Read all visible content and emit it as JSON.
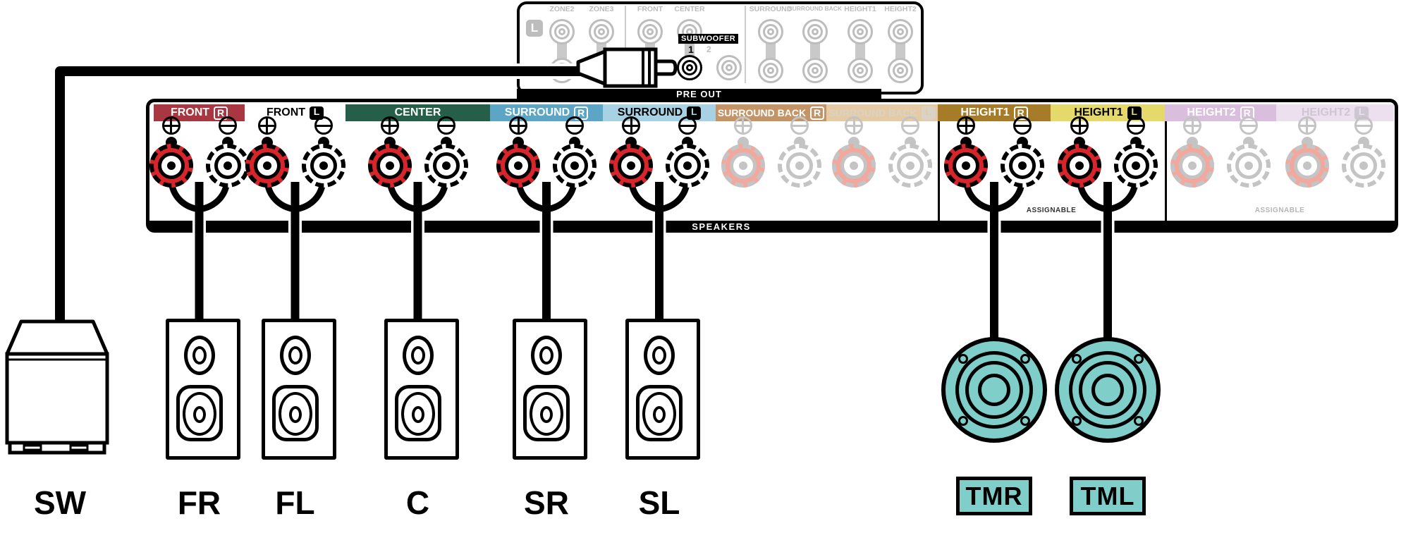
{
  "pre_out_panel": {
    "bar_label": "PRE OUT",
    "channel_label": "L",
    "subwoofer": {
      "label": "SUBWOOFER",
      "jack1_label": "1",
      "jack2_label": "2"
    },
    "columns": [
      {
        "label": "ZONE2"
      },
      {
        "label": "ZONE3"
      },
      {
        "label": "FRONT"
      },
      {
        "label": "CENTER"
      },
      {
        "label": "SURROUND"
      },
      {
        "label": "SURROUND BACK"
      },
      {
        "label": "HEIGHT1"
      },
      {
        "label": "HEIGHT2"
      }
    ],
    "inactive_color": "#bdbdbd",
    "active_color": "#000000"
  },
  "speaker_panel": {
    "bar_label": "SPEAKERS",
    "assignable_labels": [
      {
        "text": "ASSIGNABLE",
        "active": true
      },
      {
        "text": "ASSIGNABLE",
        "active": false
      }
    ],
    "groups": [
      {
        "id": "front-r",
        "label": "FRONT",
        "badge": "R",
        "badge_style": "outline",
        "bg": "#A93741",
        "fg": "#ffffff",
        "active": true,
        "wired": true
      },
      {
        "id": "front-l",
        "label": "FRONT",
        "badge": "L",
        "badge_style": "solid",
        "bg": "#ffffff",
        "fg": "#000000",
        "active": true,
        "wired": true
      },
      {
        "id": "center",
        "label": "CENTER",
        "badge": "",
        "badge_style": "none",
        "bg": "#265F49",
        "fg": "#ffffff",
        "active": true,
        "wired": true
      },
      {
        "id": "surround-r",
        "label": "SURROUND",
        "badge": "R",
        "badge_style": "outline",
        "bg": "#5CA5C4",
        "fg": "#ffffff",
        "active": true,
        "wired": true
      },
      {
        "id": "surround-l",
        "label": "SURROUND",
        "badge": "L",
        "badge_style": "solid",
        "bg": "#A7D2E3",
        "fg": "#000000",
        "active": true,
        "wired": true
      },
      {
        "id": "surround-back-r",
        "label": "SURROUND BACK",
        "badge": "R",
        "badge_style": "outline",
        "bg": "#C49366",
        "fg": "#ffffff",
        "active": false,
        "wired": false
      },
      {
        "id": "surround-back-l",
        "label": "SURROUND BACK",
        "badge": "L",
        "badge_style": "solid",
        "bg": "#E4CBA4",
        "fg": "#d9d2c6",
        "active": false,
        "wired": false
      },
      {
        "id": "height1-r",
        "label": "HEIGHT1",
        "badge": "R",
        "badge_style": "outline",
        "bg": "#A67C28",
        "fg": "#ffffff",
        "active": true,
        "wired": true
      },
      {
        "id": "height1-l",
        "label": "HEIGHT1",
        "badge": "L",
        "badge_style": "solid",
        "bg": "#E6D96B",
        "fg": "#000000",
        "active": true,
        "wired": true
      },
      {
        "id": "height2-r",
        "label": "HEIGHT2",
        "badge": "R",
        "badge_style": "outline",
        "bg": "#D9BEDD",
        "fg": "#ffffff",
        "active": false,
        "wired": false
      },
      {
        "id": "height2-l",
        "label": "HEIGHT2",
        "badge": "L",
        "badge_style": "solid",
        "bg": "#ECE0EE",
        "fg": "#cfc6d4",
        "active": false,
        "wired": false
      }
    ],
    "post_colors": {
      "plus_active": "#D8242B",
      "plus_inactive": "#F2A89C",
      "minus_active": "#ffffff",
      "minus_inactive": "#ffffff",
      "line_active": "#000000",
      "line_inactive": "#c4c4c4"
    }
  },
  "speakers": {
    "subwoofer": {
      "label": "SW"
    },
    "floor": [
      {
        "label": "FR"
      },
      {
        "label": "FL"
      },
      {
        "label": "C"
      },
      {
        "label": "SR"
      },
      {
        "label": "SL"
      }
    ],
    "ceiling": [
      {
        "label": "TMR"
      },
      {
        "label": "TML"
      }
    ],
    "ceiling_color": "#7FCEC9"
  }
}
